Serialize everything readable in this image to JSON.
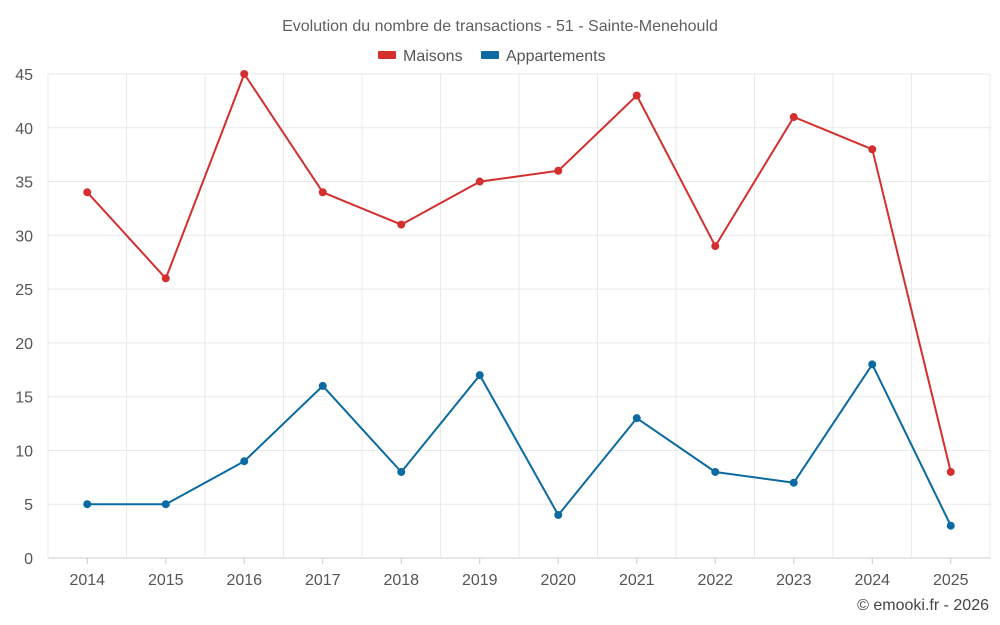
{
  "chart_data": {
    "type": "line",
    "title": "Evolution du nombre de transactions - 51 - Sainte-Menehould",
    "categories": [
      "2014",
      "2015",
      "2016",
      "2017",
      "2018",
      "2019",
      "2020",
      "2021",
      "2022",
      "2023",
      "2024",
      "2025"
    ],
    "series": [
      {
        "name": "Maisons",
        "color": "#d32f2f",
        "values": [
          34,
          26,
          45,
          34,
          31,
          35,
          36,
          43,
          29,
          41,
          38,
          8
        ]
      },
      {
        "name": "Appartements",
        "color": "#0a6aa1",
        "values": [
          5,
          5,
          9,
          16,
          8,
          17,
          4,
          13,
          8,
          7,
          18,
          3
        ]
      }
    ],
    "ylim": [
      0,
      45
    ],
    "yticks": [
      "0",
      "5",
      "10",
      "15",
      "20",
      "25",
      "30",
      "35",
      "40",
      "45"
    ],
    "xlabel": "",
    "ylabel": "",
    "grid": true,
    "legend_position": "top-center"
  },
  "credit": "© emooki.fr - 2026"
}
